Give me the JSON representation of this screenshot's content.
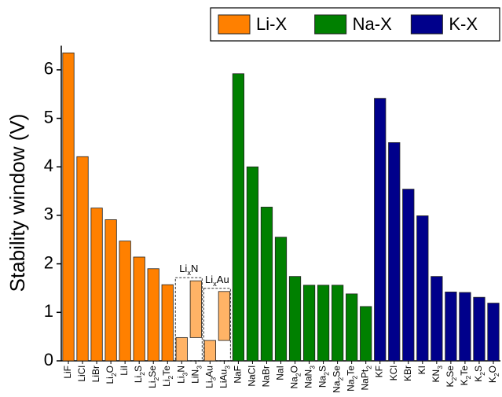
{
  "chart_data": {
    "type": "bar",
    "y_label": "Stability window (V)",
    "categories": [
      "LiF",
      "LiCl",
      "LiBr",
      "Li2O",
      "LiI",
      "Li2S",
      "Li2Se",
      "Li2Te",
      "Li3N",
      "LiN3",
      "Li3Au",
      "LiAu3",
      "NaF",
      "NaCl",
      "NaBr",
      "NaI",
      "Na2O",
      "NaN3",
      "Na2S",
      "Na2Se",
      "Na2Te",
      "NaPt2",
      "KF",
      "KCl",
      "KBr",
      "KI",
      "KN3",
      "K2Se",
      "K2Te",
      "K2S",
      "K2O"
    ],
    "series": [
      {
        "name": "Li-X",
        "color": "#ff8000",
        "values": [
          6.35,
          4.21,
          3.15,
          2.91,
          2.47,
          2.14,
          1.9,
          1.57,
          0.48,
          1.65,
          0.42,
          1.43,
          null,
          null,
          null,
          null,
          null,
          null,
          null,
          null,
          null,
          null,
          null,
          null,
          null,
          null,
          null,
          null,
          null,
          null,
          null
        ],
        "lows": [
          null,
          null,
          null,
          null,
          null,
          null,
          null,
          null,
          null,
          0.48,
          null,
          0.42,
          null,
          null,
          null,
          null,
          null,
          null,
          null,
          null,
          null,
          null,
          null,
          null,
          null,
          null,
          null,
          null,
          null,
          null,
          null
        ]
      },
      {
        "name": "Na-X",
        "color": "#008000",
        "values": [
          null,
          null,
          null,
          null,
          null,
          null,
          null,
          null,
          null,
          null,
          null,
          null,
          5.92,
          4.0,
          3.17,
          2.55,
          1.74,
          1.56,
          1.56,
          1.56,
          1.38,
          1.12,
          null,
          null,
          null,
          null,
          null,
          null,
          null,
          null,
          null
        ]
      },
      {
        "name": "K-X",
        "color": "#00008b",
        "values": [
          null,
          null,
          null,
          null,
          null,
          null,
          null,
          null,
          null,
          null,
          null,
          null,
          null,
          null,
          null,
          null,
          null,
          null,
          null,
          null,
          null,
          null,
          5.41,
          4.5,
          3.54,
          2.99,
          1.74,
          1.42,
          1.41,
          1.31,
          1.19
        ]
      }
    ],
    "annotations": [
      {
        "label": "LixN",
        "start": "Li3N",
        "end": "LiN3",
        "color": "#ffb366"
      },
      {
        "label": "LixAu",
        "start": "Li3Au",
        "end": "LiAu3",
        "color": "#ffb366"
      }
    ],
    "ylim": [
      0,
      6.5
    ],
    "yticks": [
      0,
      1,
      2,
      3,
      4,
      5,
      6
    ],
    "legend": "top-right"
  }
}
